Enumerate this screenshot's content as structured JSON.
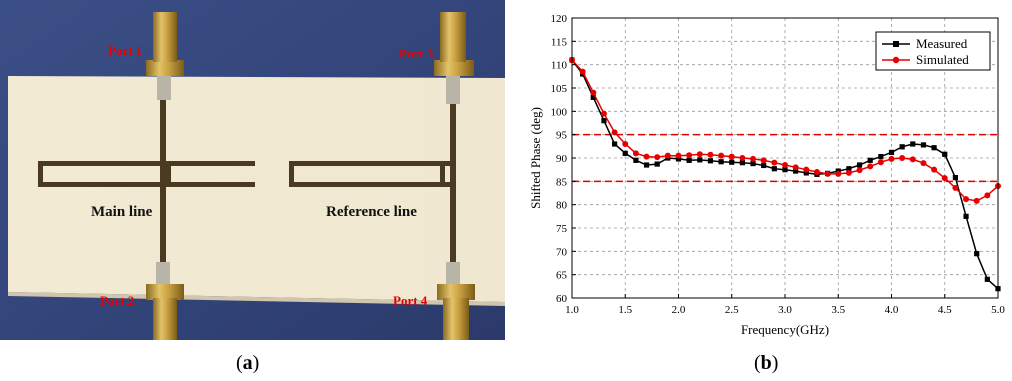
{
  "photo": {
    "ports": [
      "Port 1",
      "Port 2",
      "Port 3",
      "Port 4"
    ],
    "main_label": "Main line",
    "reference_label": "Reference line"
  },
  "captions": {
    "a_open": "(",
    "a_letter": "a",
    "a_close": ")",
    "b_open": "(",
    "b_letter": "b",
    "b_close": ")"
  },
  "chart_data": {
    "type": "line",
    "xlabel": "Frequency(GHz)",
    "ylabel": "Shifted Phase (deg)",
    "xlim": [
      1.0,
      5.0
    ],
    "ylim": [
      60,
      120
    ],
    "xticks": [
      "1.0",
      "1.5",
      "2.0",
      "2.5",
      "3.0",
      "3.5",
      "4.0",
      "4.5",
      "5.0"
    ],
    "yticks": [
      "60",
      "65",
      "70",
      "75",
      "80",
      "85",
      "90",
      "95",
      "100",
      "105",
      "110",
      "115",
      "120"
    ],
    "grid": true,
    "legend_position": "top-right",
    "reference_lines": [
      95,
      85
    ],
    "reference_color": "#e60000",
    "series": [
      {
        "name": "Measured",
        "color": "#000000",
        "marker": "square",
        "x": [
          1.0,
          1.1,
          1.2,
          1.3,
          1.4,
          1.5,
          1.6,
          1.7,
          1.8,
          1.9,
          2.0,
          2.1,
          2.2,
          2.3,
          2.4,
          2.5,
          2.6,
          2.7,
          2.8,
          2.9,
          3.0,
          3.1,
          3.2,
          3.3,
          3.4,
          3.5,
          3.6,
          3.7,
          3.8,
          3.9,
          4.0,
          4.1,
          4.2,
          4.3,
          4.4,
          4.5,
          4.6,
          4.7,
          4.8,
          4.9,
          5.0
        ],
        "values": [
          111,
          108,
          103,
          98,
          93,
          91,
          89.5,
          88.5,
          88.7,
          90,
          89.8,
          89.5,
          89.6,
          89.4,
          89.2,
          89.1,
          89.0,
          88.8,
          88.4,
          87.7,
          87.5,
          87.2,
          86.8,
          86.5,
          86.7,
          87.2,
          87.7,
          88.5,
          89.5,
          90.3,
          91.2,
          92.4,
          93.0,
          92.8,
          92.2,
          90.8,
          85.8,
          77.5,
          69.5,
          64,
          62
        ]
      },
      {
        "name": "Simulated",
        "color": "#e60000",
        "marker": "circle",
        "x": [
          1.0,
          1.1,
          1.2,
          1.3,
          1.4,
          1.5,
          1.6,
          1.7,
          1.8,
          1.9,
          2.0,
          2.1,
          2.2,
          2.3,
          2.4,
          2.5,
          2.6,
          2.7,
          2.8,
          2.9,
          3.0,
          3.1,
          3.2,
          3.3,
          3.4,
          3.5,
          3.6,
          3.7,
          3.8,
          3.9,
          4.0,
          4.1,
          4.2,
          4.3,
          4.4,
          4.5,
          4.6,
          4.7,
          4.8,
          4.9,
          5.0
        ],
        "values": [
          111,
          108.5,
          104,
          99.5,
          95.5,
          93,
          91,
          90.3,
          90.2,
          90.5,
          90.5,
          90.6,
          90.8,
          90.7,
          90.5,
          90.3,
          90.0,
          89.8,
          89.5,
          89,
          88.5,
          88.0,
          87.5,
          87.0,
          86.6,
          86.6,
          86.8,
          87.4,
          88.2,
          89.1,
          89.8,
          90.0,
          89.7,
          88.9,
          87.5,
          85.7,
          83.6,
          81.2,
          80.8,
          82,
          84
        ]
      }
    ]
  }
}
